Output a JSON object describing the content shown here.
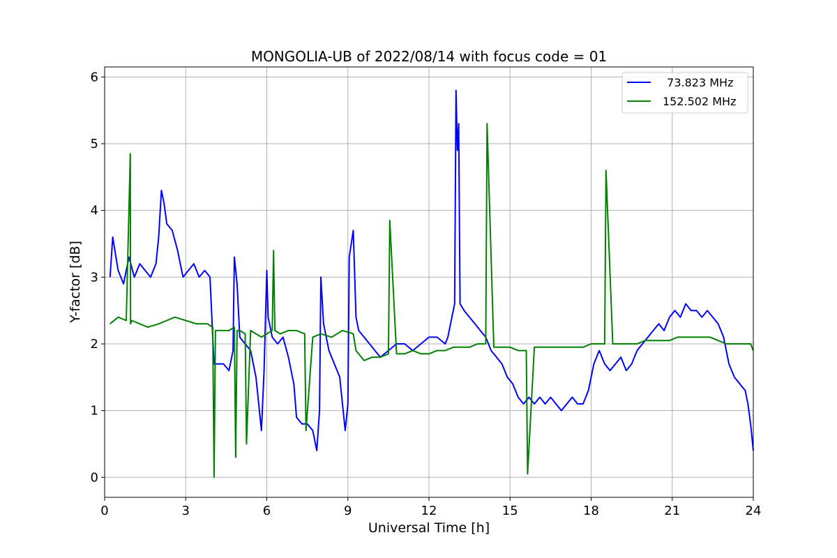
{
  "chart_data": {
    "type": "line",
    "title": "MONGOLIA-UB of 2022/08/14 with focus code = 01",
    "xlabel": "Universal Time [h]",
    "ylabel": "Y-factor [dB]",
    "xlim": [
      0,
      24
    ],
    "ylim": [
      -0.3,
      6.15
    ],
    "xticks": [
      0,
      3,
      6,
      9,
      12,
      15,
      18,
      21,
      24
    ],
    "yticks": [
      0,
      1,
      2,
      3,
      4,
      5,
      6
    ],
    "grid": true,
    "legend_position": "top-right",
    "series": [
      {
        "name": "73.823 MHz",
        "legend_label": "  73.823 MHz",
        "color": "#0000ff",
        "x": [
          0.2,
          0.3,
          0.5,
          0.7,
          0.9,
          1.1,
          1.3,
          1.5,
          1.7,
          1.9,
          2.0,
          2.1,
          2.2,
          2.3,
          2.5,
          2.7,
          2.9,
          3.1,
          3.3,
          3.5,
          3.7,
          3.9,
          4.0,
          4.05,
          4.2,
          4.4,
          4.6,
          4.75,
          4.8,
          4.9,
          5.0,
          5.2,
          5.4,
          5.6,
          5.8,
          5.9,
          6.0,
          6.05,
          6.2,
          6.4,
          6.6,
          6.8,
          7.0,
          7.1,
          7.3,
          7.5,
          7.7,
          7.85,
          7.95,
          8.0,
          8.1,
          8.3,
          8.5,
          8.7,
          8.9,
          9.0,
          9.05,
          9.2,
          9.3,
          9.4,
          9.6,
          9.8,
          10.0,
          10.2,
          10.5,
          10.8,
          11.1,
          11.4,
          11.7,
          12.0,
          12.3,
          12.6,
          12.7,
          12.85,
          12.95,
          13.0,
          13.05,
          13.1,
          13.15,
          13.3,
          13.5,
          13.7,
          13.9,
          14.1,
          14.3,
          14.5,
          14.7,
          14.9,
          15.1,
          15.3,
          15.5,
          15.7,
          15.9,
          16.1,
          16.3,
          16.5,
          16.7,
          16.9,
          17.1,
          17.3,
          17.5,
          17.7,
          17.9,
          18.1,
          18.3,
          18.5,
          18.7,
          18.9,
          19.1,
          19.3,
          19.5,
          19.7,
          19.9,
          20.1,
          20.3,
          20.5,
          20.7,
          20.9,
          21.1,
          21.3,
          21.5,
          21.7,
          21.9,
          22.1,
          22.3,
          22.5,
          22.7,
          22.9,
          23.1,
          23.3,
          23.5,
          23.7,
          23.8,
          23.9,
          24.0
        ],
        "y": [
          3.0,
          3.6,
          3.1,
          2.9,
          3.3,
          3.0,
          3.2,
          3.1,
          3.0,
          3.2,
          3.6,
          4.3,
          4.1,
          3.8,
          3.7,
          3.4,
          3.0,
          3.1,
          3.2,
          3.0,
          3.1,
          3.0,
          2.1,
          1.7,
          1.7,
          1.7,
          1.6,
          1.9,
          3.3,
          2.9,
          2.1,
          2.0,
          1.9,
          1.5,
          0.7,
          1.6,
          3.1,
          2.4,
          2.1,
          2.0,
          2.1,
          1.8,
          1.4,
          0.9,
          0.8,
          0.8,
          0.7,
          0.4,
          1.0,
          3.0,
          2.3,
          1.9,
          1.7,
          1.5,
          0.7,
          1.1,
          3.3,
          3.7,
          2.4,
          2.2,
          2.1,
          2.0,
          1.9,
          1.8,
          1.9,
          2.0,
          2.0,
          1.9,
          2.0,
          2.1,
          2.1,
          2.0,
          2.1,
          2.4,
          2.6,
          5.8,
          4.9,
          5.3,
          2.6,
          2.5,
          2.4,
          2.3,
          2.2,
          2.1,
          1.9,
          1.8,
          1.7,
          1.5,
          1.4,
          1.2,
          1.1,
          1.2,
          1.1,
          1.2,
          1.1,
          1.2,
          1.1,
          1.0,
          1.1,
          1.2,
          1.1,
          1.1,
          1.3,
          1.7,
          1.9,
          1.7,
          1.6,
          1.7,
          1.8,
          1.6,
          1.7,
          1.9,
          2.0,
          2.1,
          2.2,
          2.3,
          2.2,
          2.4,
          2.5,
          2.4,
          2.6,
          2.5,
          2.5,
          2.4,
          2.5,
          2.4,
          2.3,
          2.1,
          1.7,
          1.5,
          1.4,
          1.3,
          1.1,
          0.8,
          0.4
        ]
      },
      {
        "name": "152.502 MHz",
        "legend_label": "152.502 MHz",
        "color": "#008000",
        "x": [
          0.2,
          0.5,
          0.8,
          0.95,
          0.96,
          1.0,
          1.3,
          1.6,
          2.0,
          2.3,
          2.6,
          3.0,
          3.4,
          3.8,
          4.0,
          4.05,
          4.1,
          4.3,
          4.6,
          4.8,
          4.85,
          4.9,
          5.0,
          5.2,
          5.25,
          5.4,
          5.6,
          5.8,
          6.0,
          6.2,
          6.25,
          6.3,
          6.5,
          6.8,
          7.1,
          7.4,
          7.45,
          7.7,
          8.0,
          8.4,
          8.8,
          9.2,
          9.3,
          9.6,
          9.9,
          10.2,
          10.5,
          10.55,
          10.8,
          11.1,
          11.4,
          11.7,
          12.0,
          12.3,
          12.6,
          12.9,
          13.2,
          13.5,
          13.8,
          14.1,
          14.15,
          14.4,
          14.7,
          15.0,
          15.3,
          15.6,
          15.65,
          15.9,
          16.2,
          16.5,
          16.8,
          17.1,
          17.4,
          17.7,
          18.0,
          18.3,
          18.5,
          18.55,
          18.8,
          19.1,
          19.4,
          19.7,
          20.0,
          20.3,
          20.6,
          20.9,
          21.2,
          21.5,
          21.8,
          22.1,
          22.4,
          22.7,
          23.0,
          23.3,
          23.6,
          23.9,
          24.0
        ],
        "y": [
          2.3,
          2.4,
          2.35,
          4.85,
          2.3,
          2.35,
          2.3,
          2.25,
          2.3,
          2.35,
          2.4,
          2.35,
          2.3,
          2.3,
          2.25,
          0.0,
          2.2,
          2.2,
          2.2,
          2.25,
          0.3,
          2.2,
          2.2,
          2.15,
          0.5,
          2.2,
          2.15,
          2.1,
          2.15,
          2.2,
          3.4,
          2.2,
          2.15,
          2.2,
          2.2,
          2.15,
          0.7,
          2.1,
          2.15,
          2.1,
          2.2,
          2.15,
          1.9,
          1.75,
          1.8,
          1.8,
          1.85,
          3.85,
          1.85,
          1.85,
          1.9,
          1.85,
          1.85,
          1.9,
          1.9,
          1.95,
          1.95,
          1.95,
          2.0,
          2.0,
          5.3,
          1.95,
          1.95,
          1.95,
          1.9,
          1.9,
          0.05,
          1.95,
          1.95,
          1.95,
          1.95,
          1.95,
          1.95,
          1.95,
          2.0,
          2.0,
          2.0,
          4.6,
          2.0,
          2.0,
          2.0,
          2.0,
          2.05,
          2.05,
          2.05,
          2.05,
          2.1,
          2.1,
          2.1,
          2.1,
          2.1,
          2.05,
          2.0,
          2.0,
          2.0,
          2.0,
          1.9
        ]
      }
    ]
  }
}
